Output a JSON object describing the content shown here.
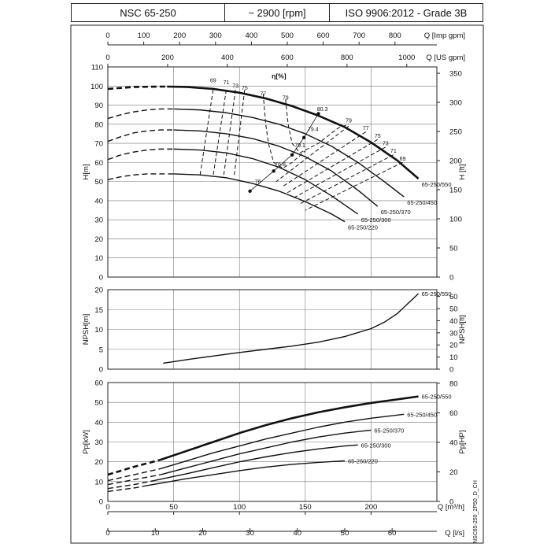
{
  "header": {
    "pump_model": "NSC 65-250",
    "speed": "~ 2900 [rpm]",
    "standard": "ISO 9906:2012 - Grade 3B"
  },
  "side_code": "NSC65-250_2P50_D_CH",
  "flow_scales": {
    "imp_gpm": {
      "label": "Q [Imp gpm]",
      "ticks": [
        0,
        100,
        200,
        300,
        400,
        500,
        600,
        700,
        800
      ]
    },
    "us_gpm": {
      "label": "Q [US gpm]",
      "ticks": [
        0,
        200,
        400,
        600,
        800,
        1000
      ]
    },
    "m3h": {
      "label": "Q [m³/h]",
      "ticks": [
        0,
        50,
        100,
        150,
        200
      ]
    },
    "ls": {
      "label": "Q [l/s]",
      "ticks": [
        0,
        10,
        20,
        30,
        40,
        50,
        60
      ]
    }
  },
  "colors": {
    "line": "#111111",
    "grid": "#777777",
    "frame": "#222222"
  },
  "chart_data": [
    {
      "type": "line",
      "panel": "head",
      "x_unit": "m³/h",
      "xlim": [
        0,
        250
      ],
      "ylabel_left": "H[m]",
      "ylabel_right": "H [ft]",
      "ylim": [
        0,
        110
      ],
      "yticks_left": [
        0,
        10,
        20,
        30,
        40,
        50,
        60,
        70,
        80,
        90,
        100,
        110
      ],
      "yticks_right": [
        0,
        50,
        100,
        150,
        200,
        250,
        300,
        350
      ],
      "grid": true,
      "efficiency_label": "η[%]",
      "series": [
        {
          "name": "65-250/550",
          "bold": true,
          "dashed_x": [
            0,
            10,
            20,
            30,
            40,
            45
          ],
          "dashed_y": [
            98.5,
            99,
            99.5,
            99.6,
            99.7,
            99.7
          ],
          "x": [
            45,
            60,
            80,
            100,
            120,
            140,
            160,
            180,
            200,
            220,
            236
          ],
          "y": [
            99.7,
            99.5,
            98.5,
            96.5,
            93.5,
            89.5,
            84.5,
            78.5,
            70.5,
            61,
            51.5
          ]
        },
        {
          "name": "65-250/450",
          "dashed_x": [
            0,
            10,
            20,
            30,
            40,
            50
          ],
          "dashed_y": [
            83,
            85,
            86.5,
            87.5,
            88,
            88
          ],
          "x": [
            50,
            70,
            90,
            110,
            130,
            150,
            170,
            190,
            210,
            225
          ],
          "y": [
            88,
            87.5,
            86,
            83.5,
            80,
            75,
            68.5,
            60,
            50,
            42
          ]
        },
        {
          "name": "65-250/370",
          "dashed_x": [
            0,
            10,
            20,
            30,
            40,
            50
          ],
          "dashed_y": [
            71,
            73.5,
            75.5,
            76.5,
            77,
            77
          ],
          "x": [
            50,
            70,
            90,
            110,
            130,
            150,
            170,
            190,
            205
          ],
          "y": [
            77,
            76.5,
            75,
            72.5,
            68.5,
            63,
            55.5,
            45.5,
            37
          ]
        },
        {
          "name": "65-250/300",
          "dashed_x": [
            0,
            10,
            20,
            30,
            40,
            50
          ],
          "dashed_y": [
            61.5,
            64,
            65.5,
            66.5,
            67,
            67
          ],
          "x": [
            50,
            70,
            90,
            110,
            130,
            150,
            170,
            190
          ],
          "y": [
            67,
            66.5,
            65,
            62,
            57.5,
            51,
            42.5,
            33
          ]
        },
        {
          "name": "65-250/220",
          "dashed_x": [
            0,
            10,
            20,
            30,
            40,
            50
          ],
          "dashed_y": [
            51,
            52.5,
            53.5,
            54,
            54,
            54
          ],
          "x": [
            50,
            70,
            90,
            110,
            130,
            150,
            170,
            180
          ],
          "y": [
            54,
            53.5,
            52,
            49,
            45,
            39.5,
            33,
            29
          ]
        }
      ],
      "efficiency_labels": [
        {
          "text": "69",
          "x": 80,
          "y": 102
        },
        {
          "text": "71",
          "x": 90,
          "y": 101
        },
        {
          "text": "73",
          "x": 97,
          "y": 99
        },
        {
          "text": "75",
          "x": 104,
          "y": 98
        },
        {
          "text": "77",
          "x": 118,
          "y": 95
        },
        {
          "text": "79",
          "x": 135,
          "y": 93
        },
        {
          "text": "80.3",
          "x": 163,
          "y": 87
        },
        {
          "text": "79.4",
          "x": 156,
          "y": 76.5
        },
        {
          "text": "79.1",
          "x": 146,
          "y": 68
        },
        {
          "text": "76.8",
          "x": 131,
          "y": 58
        },
        {
          "text": "76",
          "x": 114,
          "y": 49
        },
        {
          "text": "79",
          "x": 183,
          "y": 81
        },
        {
          "text": "77",
          "x": 196,
          "y": 77
        },
        {
          "text": "75",
          "x": 205,
          "y": 73
        },
        {
          "text": "73",
          "x": 211,
          "y": 69
        },
        {
          "text": "71",
          "x": 217,
          "y": 65
        },
        {
          "text": "69",
          "x": 224,
          "y": 61
        }
      ],
      "bep_points": [
        {
          "x": 160,
          "y": 85.5
        },
        {
          "x": 149,
          "y": 73
        },
        {
          "x": 140,
          "y": 64
        },
        {
          "x": 126,
          "y": 55.5
        },
        {
          "x": 108,
          "y": 45
        }
      ]
    },
    {
      "type": "line",
      "panel": "npsh",
      "x_unit": "m³/h",
      "xlim": [
        0,
        250
      ],
      "ylabel_left": "NPSH[m]",
      "ylabel_right": "NPSH[ft]",
      "ylim": [
        0,
        20
      ],
      "yticks_left": [
        0,
        5,
        10,
        15,
        20
      ],
      "yticks_right": [
        0,
        10,
        20,
        30,
        40,
        50,
        60
      ],
      "grid": true,
      "series": [
        {
          "name": "65-250/550",
          "x": [
            42,
            60,
            80,
            100,
            120,
            140,
            160,
            180,
            200,
            210,
            220,
            228,
            236
          ],
          "y": [
            1.5,
            2.4,
            3.3,
            4.2,
            5.0,
            5.8,
            6.8,
            8.2,
            10.2,
            11.8,
            14,
            16.5,
            19
          ]
        }
      ]
    },
    {
      "type": "line",
      "panel": "power",
      "x_unit": "m³/h",
      "xlim": [
        0,
        250
      ],
      "ylabel_left": "Pp[kW]",
      "ylabel_right": "Pp[HP]",
      "ylim": [
        0,
        60
      ],
      "yticks_left": [
        0,
        10,
        20,
        30,
        40,
        50,
        60
      ],
      "yticks_right": [
        0,
        20,
        40,
        60,
        80
      ],
      "grid": true,
      "series": [
        {
          "name": "65-250/550",
          "bold": true,
          "dashed_x": [
            0,
            20,
            40
          ],
          "dashed_y": [
            13.5,
            17.5,
            21
          ],
          "x": [
            40,
            60,
            80,
            100,
            120,
            140,
            160,
            180,
            200,
            220,
            236
          ],
          "y": [
            21,
            25.5,
            30,
            34.5,
            38.5,
            42,
            45,
            47.5,
            49.7,
            51.5,
            53
          ]
        },
        {
          "name": "65-250/450",
          "dashed_x": [
            0,
            20,
            40
          ],
          "dashed_y": [
            10.5,
            13.5,
            16.5
          ],
          "x": [
            40,
            60,
            80,
            100,
            120,
            140,
            160,
            180,
            200,
            225
          ],
          "y": [
            16.5,
            20.5,
            24.5,
            28,
            31.5,
            34.5,
            37.5,
            40,
            42,
            44
          ]
        },
        {
          "name": "65-250/370",
          "dashed_x": [
            0,
            20,
            40
          ],
          "dashed_y": [
            8.5,
            11,
            13.5
          ],
          "x": [
            40,
            60,
            80,
            100,
            120,
            140,
            160,
            180,
            200
          ],
          "y": [
            13.5,
            17,
            20.5,
            24,
            27,
            30,
            32.5,
            34.5,
            36
          ]
        },
        {
          "name": "65-250/300",
          "dashed_x": [
            0,
            20,
            35
          ],
          "dashed_y": [
            6.5,
            8.5,
            10.5
          ],
          "x": [
            35,
            60,
            80,
            100,
            120,
            140,
            160,
            180,
            190
          ],
          "y": [
            10.5,
            14,
            17,
            20,
            22.5,
            24.7,
            26.5,
            28,
            28.5
          ]
        },
        {
          "name": "65-250/220",
          "dashed_x": [
            0,
            20,
            30
          ],
          "dashed_y": [
            5,
            6.8,
            8
          ],
          "x": [
            30,
            60,
            80,
            100,
            120,
            140,
            160,
            180
          ],
          "y": [
            8,
            11.5,
            13.5,
            15.5,
            17.3,
            18.7,
            19.7,
            20.5
          ]
        }
      ]
    }
  ]
}
